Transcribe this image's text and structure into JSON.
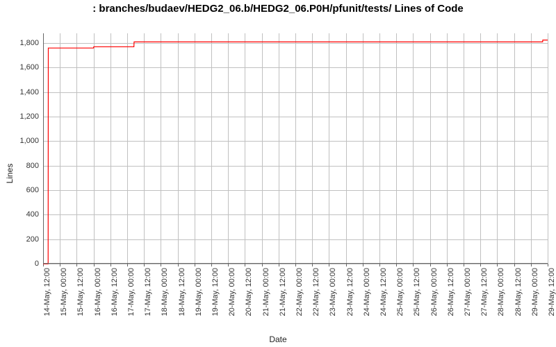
{
  "chart": {
    "type": "line",
    "title": ": branches/budaev/HEDG2_06.b/HEDG2_06.P0H/pfunit/tests/ Lines of Code",
    "title_fontsize": 15,
    "xlabel": "Date",
    "ylabel": "Lines",
    "label_fontsize": 12,
    "tick_fontsize": 11,
    "background_color": "#ffffff",
    "grid_color": "#c0c0c0",
    "axis_color": "#666666",
    "line_color": "#ff0000",
    "line_width": 1.2,
    "ylim": [
      0,
      1880
    ],
    "y_ticks": [
      0,
      200,
      400,
      600,
      800,
      1000,
      1200,
      1400,
      1600,
      1800
    ],
    "y_tick_labels": [
      "0",
      "200",
      "400",
      "600",
      "800",
      "1,000",
      "1,200",
      "1,400",
      "1,600",
      "1,800"
    ],
    "x_tick_labels": [
      "14-May, 12:00",
      "15-May, 00:00",
      "15-May, 12:00",
      "16-May, 00:00",
      "16-May, 12:00",
      "17-May, 00:00",
      "17-May, 12:00",
      "18-May, 00:00",
      "18-May, 12:00",
      "19-May, 00:00",
      "19-May, 12:00",
      "20-May, 00:00",
      "20-May, 12:00",
      "21-May, 00:00",
      "21-May, 12:00",
      "22-May, 00:00",
      "22-May, 12:00",
      "23-May, 00:00",
      "23-May, 12:00",
      "24-May, 00:00",
      "24-May, 12:00",
      "25-May, 00:00",
      "25-May, 12:00",
      "26-May, 00:00",
      "26-May, 12:00",
      "27-May, 00:00",
      "27-May, 12:00",
      "28-May, 00:00",
      "28-May, 12:00",
      "29-May, 00:00",
      "29-May, 12:00"
    ],
    "x_index_range": [
      0,
      30
    ],
    "series": {
      "data": [
        {
          "x": 0.0,
          "y": 0
        },
        {
          "x": 0.3,
          "y": 0
        },
        {
          "x": 0.31,
          "y": 1760
        },
        {
          "x": 3.0,
          "y": 1760
        },
        {
          "x": 3.01,
          "y": 1770
        },
        {
          "x": 5.4,
          "y": 1770
        },
        {
          "x": 5.41,
          "y": 1810
        },
        {
          "x": 29.7,
          "y": 1810
        },
        {
          "x": 29.71,
          "y": 1825
        },
        {
          "x": 30.0,
          "y": 1825
        }
      ]
    }
  }
}
